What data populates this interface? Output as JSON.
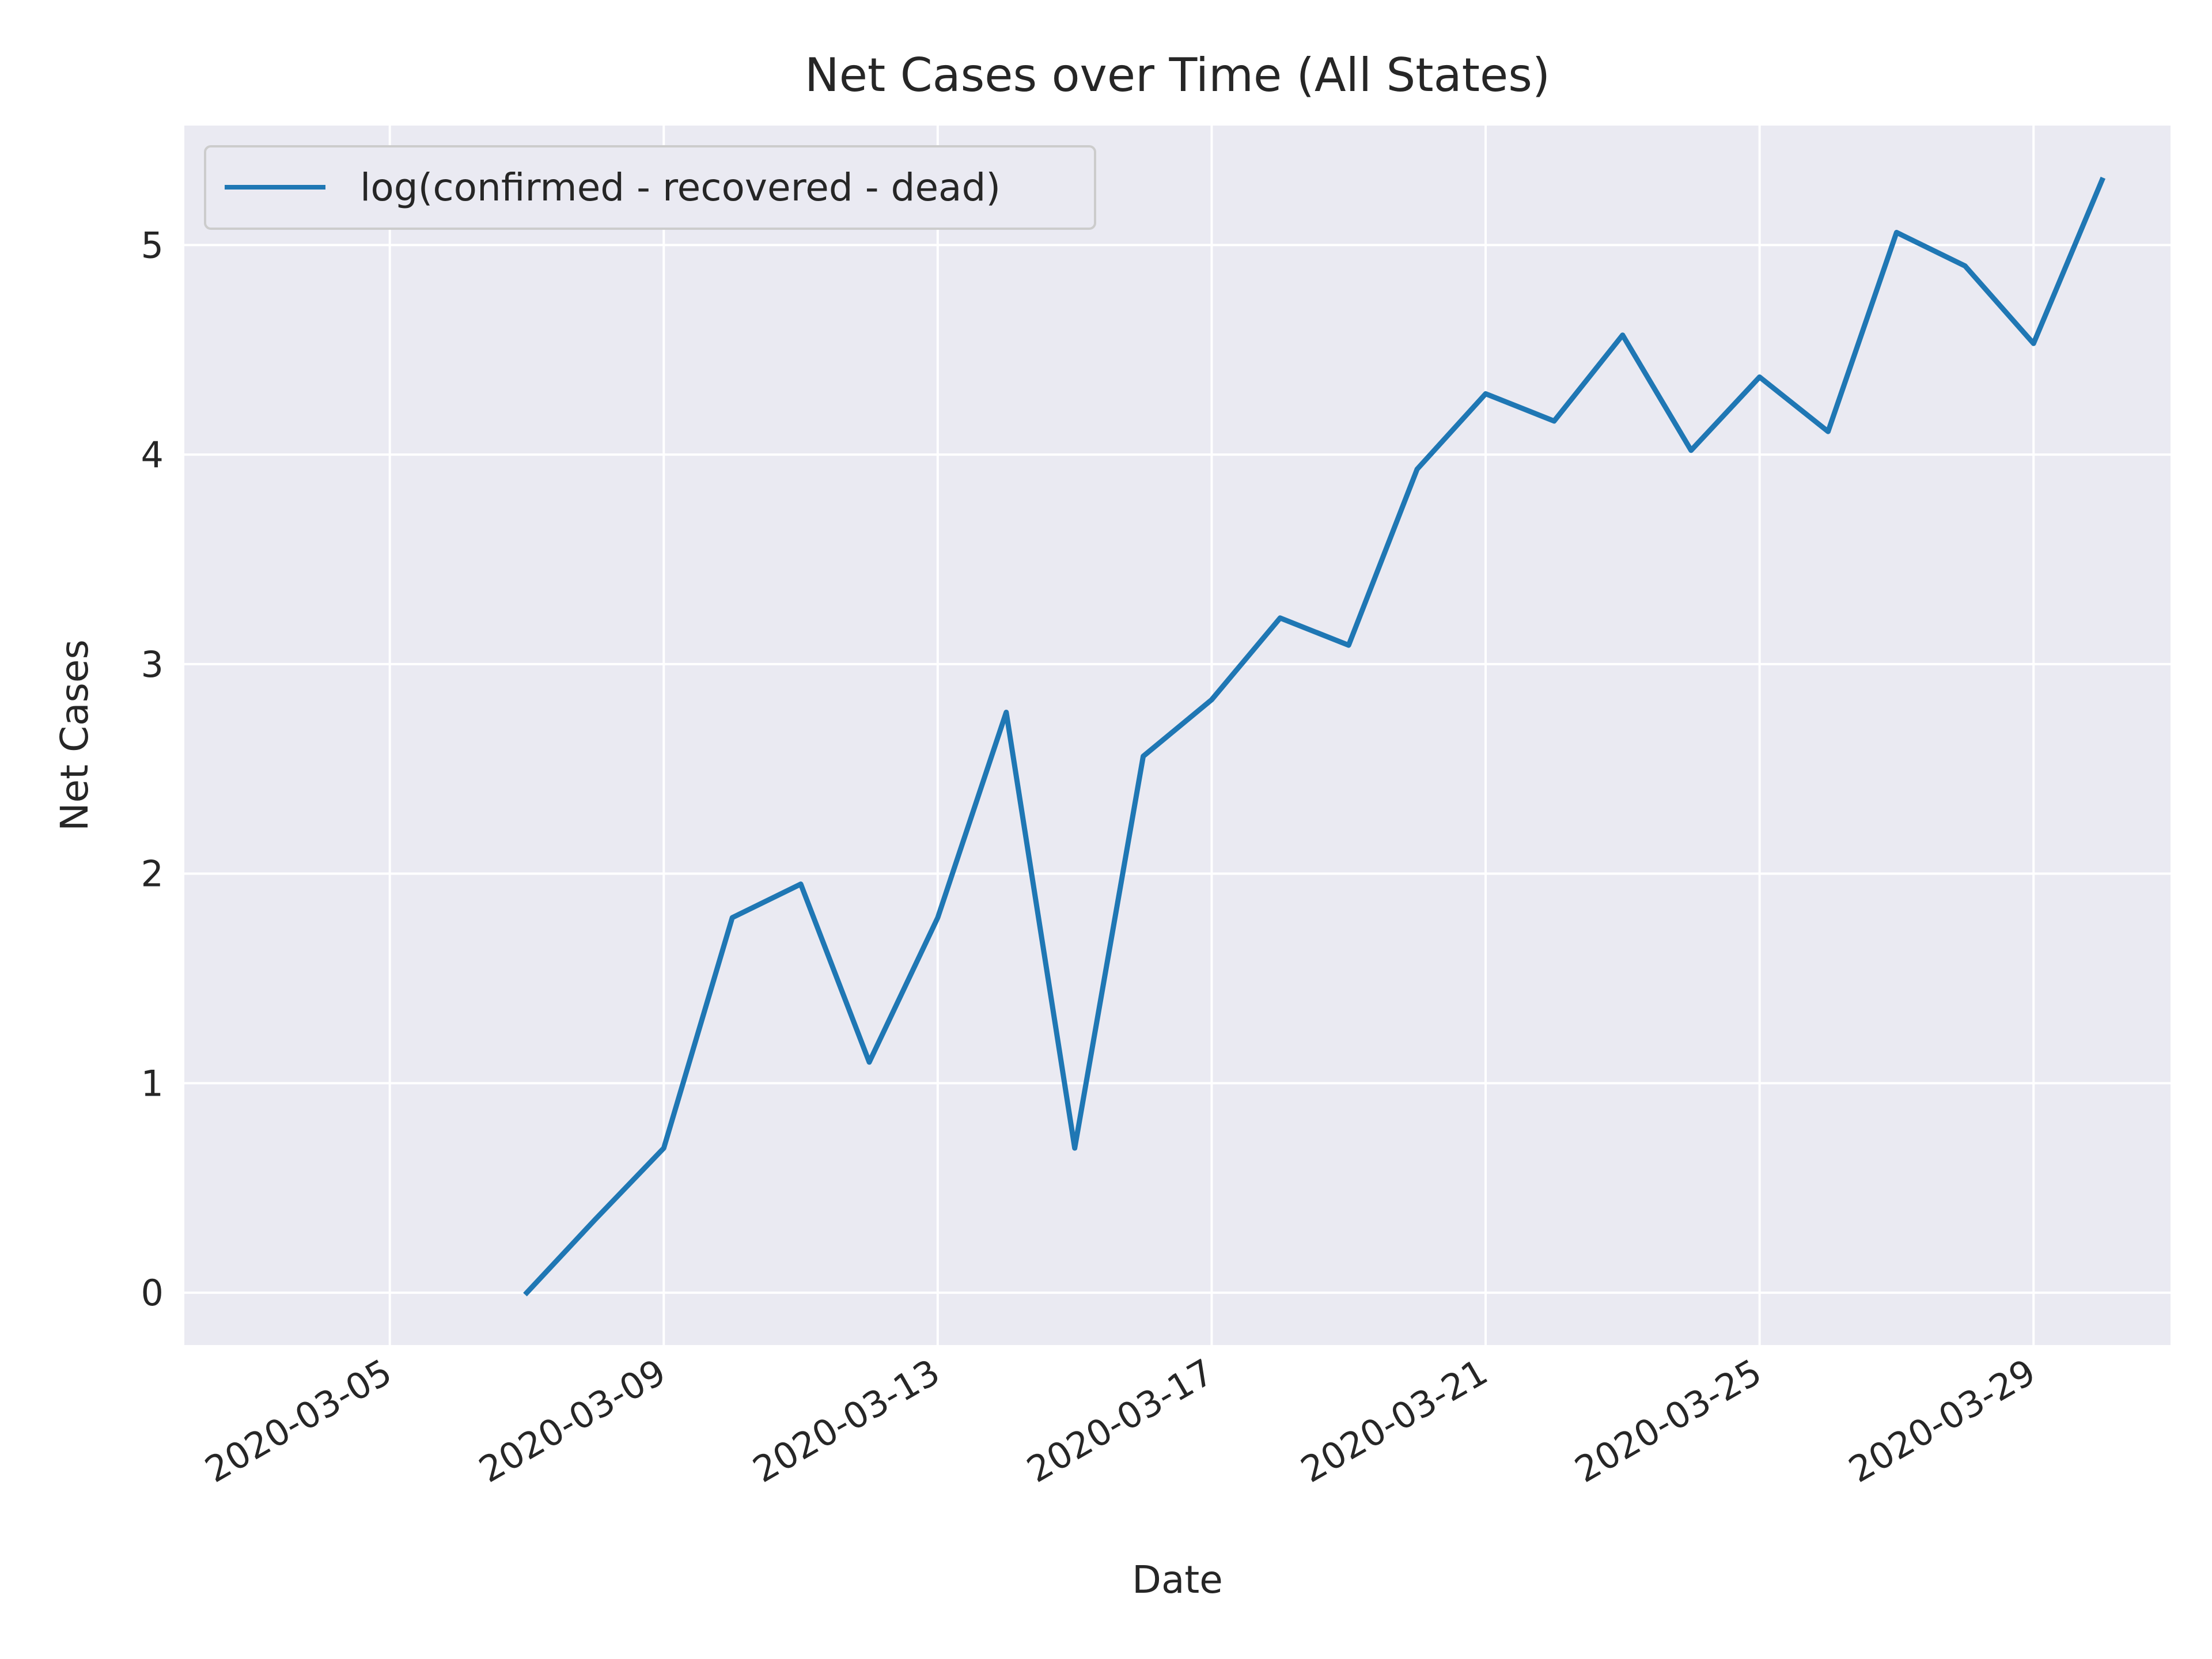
{
  "chart_data": {
    "type": "line",
    "title": "Net Cases over Time (All States)",
    "xlabel": "Date",
    "ylabel": "Net Cases",
    "x_tick_labels": [
      "2020-03-05",
      "2020-03-09",
      "2020-03-13",
      "2020-03-17",
      "2020-03-21",
      "2020-03-25",
      "2020-03-29"
    ],
    "y_ticks": [
      0,
      1,
      2,
      3,
      4,
      5
    ],
    "xlim": [
      "2020-03-02",
      "2020-03-31"
    ],
    "ylim": [
      -0.25,
      5.57
    ],
    "grid": true,
    "legend": "upper-left",
    "series": [
      {
        "name": "log(confirmed - recovered - dead)",
        "color": "#1f77b4",
        "x": [
          "2020-03-07",
          "2020-03-08",
          "2020-03-09",
          "2020-03-10",
          "2020-03-11",
          "2020-03-12",
          "2020-03-13",
          "2020-03-14",
          "2020-03-15",
          "2020-03-16",
          "2020-03-17",
          "2020-03-18",
          "2020-03-19",
          "2020-03-20",
          "2020-03-21",
          "2020-03-22",
          "2020-03-23",
          "2020-03-24",
          "2020-03-25",
          "2020-03-26",
          "2020-03-27",
          "2020-03-28",
          "2020-03-29",
          "2020-03-30"
        ],
        "y": [
          0.0,
          0.35,
          0.69,
          1.79,
          1.95,
          1.1,
          1.79,
          2.77,
          0.69,
          2.56,
          2.83,
          3.22,
          3.09,
          3.93,
          4.29,
          4.16,
          4.57,
          4.02,
          4.37,
          4.11,
          5.06,
          4.9,
          4.53,
          5.31
        ]
      }
    ]
  }
}
